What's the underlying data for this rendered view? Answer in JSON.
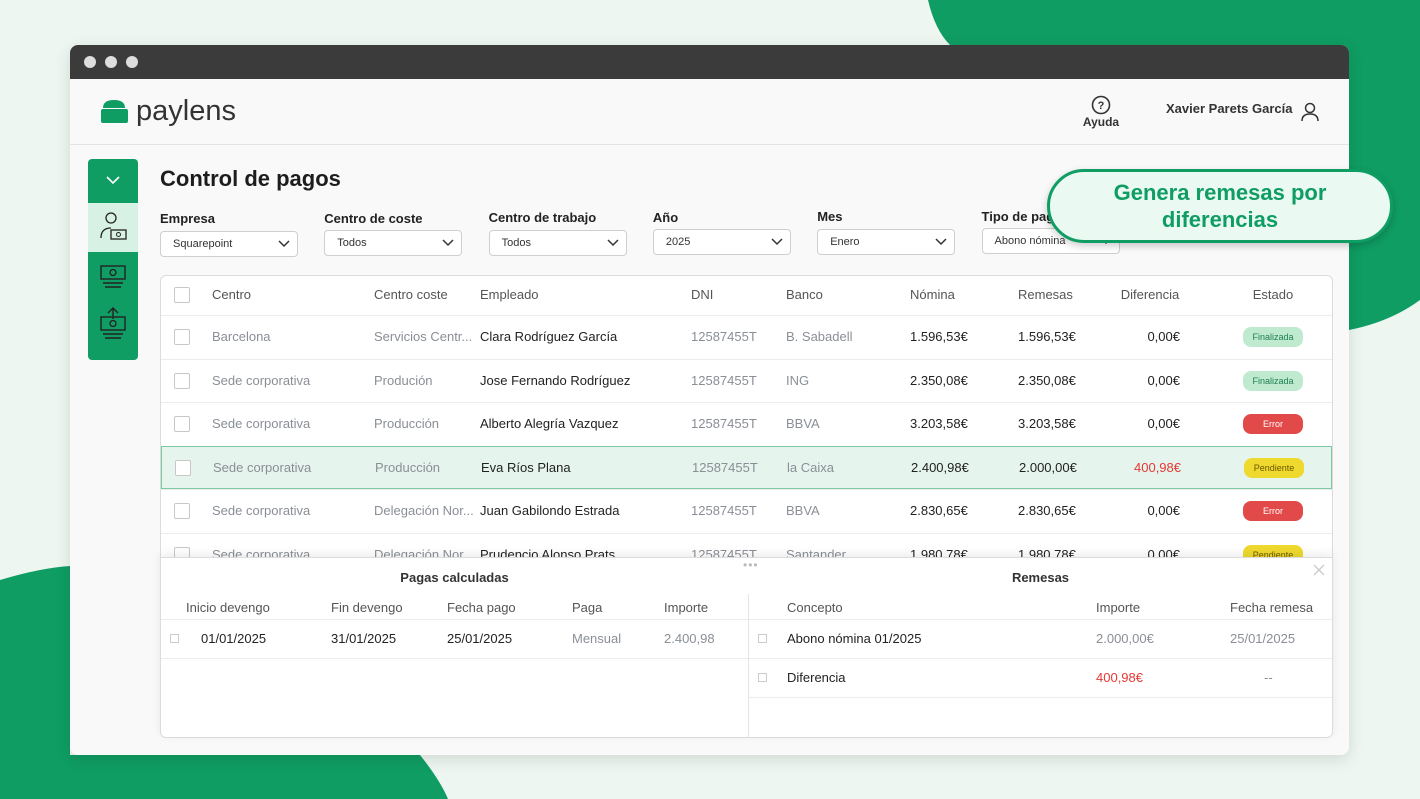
{
  "brand": "paylens",
  "header": {
    "help": "Ayuda",
    "user": "Xavier Parets García"
  },
  "page_title": "Control de pagos",
  "callout": "Genera remesas por diferencias",
  "filters": [
    {
      "label": "Empresa",
      "value": "Squarepoint"
    },
    {
      "label": "Centro de coste",
      "value": "Todos"
    },
    {
      "label": "Centro de trabajo",
      "value": "Todos"
    },
    {
      "label": "Año",
      "value": "2025"
    },
    {
      "label": "Mes",
      "value": "Enero"
    },
    {
      "label": "Tipo de pago",
      "value": "Abono nómina"
    }
  ],
  "table": {
    "columns": [
      "Centro",
      "Centro coste",
      "Empleado",
      "DNI",
      "Banco",
      "Nómina",
      "Remesas",
      "Diferencia",
      "Estado"
    ],
    "rows": [
      [
        "Barcelona",
        "Servicios Centr...",
        "Clara Rodríguez García",
        "12587455T",
        "B. Sabadell",
        "1.596,53€",
        "1.596,53€",
        "0,00€",
        "Finalizada"
      ],
      [
        "Sede corporativa",
        "Produción",
        "Jose Fernando Rodríguez",
        "12587455T",
        "ING",
        "2.350,08€",
        "2.350,08€",
        "0,00€",
        "Finalizada"
      ],
      [
        "Sede corporativa",
        "Producción",
        "Alberto Alegría Vazquez",
        "12587455T",
        "BBVA",
        "3.203,58€",
        "3.203,58€",
        "0,00€",
        "Error"
      ],
      [
        "Sede corporativa",
        "Producción",
        "Eva Ríos Plana",
        "12587455T",
        "la Caixa",
        "2.400,98€",
        "2.000,00€",
        "400,98€",
        "Pendiente"
      ],
      [
        "Sede corporativa",
        "Delegación Nor...",
        "Juan Gabilondo Estrada",
        "12587455T",
        "BBVA",
        "2.830,65€",
        "2.830,65€",
        "0,00€",
        "Error"
      ],
      [
        "Sede corporativa",
        "Delegación Nor...",
        "Prudencio Alonso Prats",
        "12587455T",
        "Santander",
        "1.980,78€",
        "1.980,78€",
        "0,00€",
        "Pendiente"
      ]
    ]
  },
  "detail": {
    "left": {
      "title": "Pagas calculadas",
      "columns": [
        "Inicio devengo",
        "Fin devengo",
        "Fecha pago",
        "Paga",
        "Importe"
      ],
      "rows": [
        [
          "01/01/2025",
          "31/01/2025",
          "25/01/2025",
          "Mensual",
          "2.400,98"
        ]
      ]
    },
    "right": {
      "title": "Remesas",
      "columns": [
        "Concepto",
        "Importe",
        "Fecha remesa"
      ],
      "rows": [
        [
          "Abono nómina 01/2025",
          "2.000,00€",
          "25/01/2025"
        ],
        [
          "Diferencia",
          "400,98€",
          "--"
        ]
      ]
    }
  }
}
